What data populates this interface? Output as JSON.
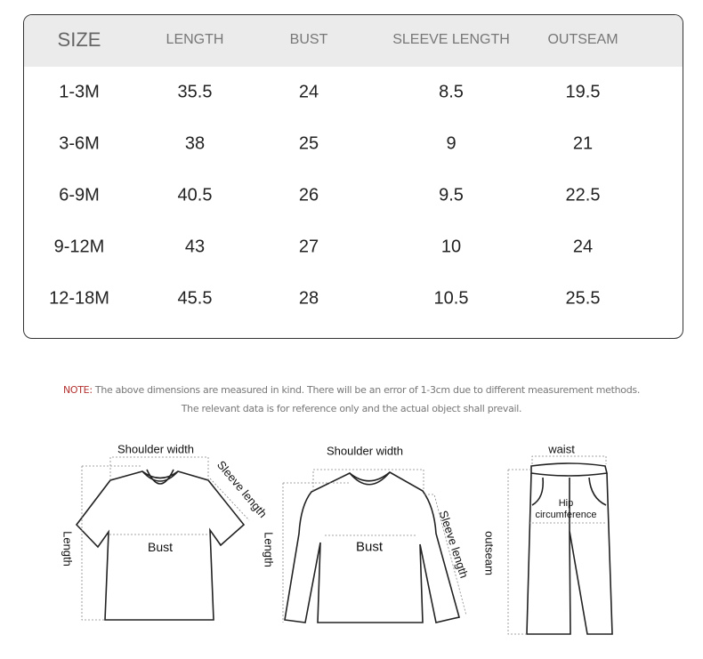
{
  "table": {
    "headers": [
      "SIZE",
      "LENGTH",
      "BUST",
      "SLEEVE LENGTH",
      "OUTSEAM"
    ],
    "rows": [
      [
        "1-3M",
        "35.5",
        "24",
        "8.5",
        "19.5"
      ],
      [
        "3-6M",
        "38",
        "25",
        "9",
        "21"
      ],
      [
        "6-9M",
        "40.5",
        "26",
        "9.5",
        "22.5"
      ],
      [
        "9-12M",
        "43",
        "27",
        "10",
        "24"
      ],
      [
        "12-18M",
        "45.5",
        "28",
        "10.5",
        "25.5"
      ]
    ]
  },
  "note": {
    "prefix": "NOTE:",
    "line1": " The above dimensions are measured in kind. There will be an error of 1-3cm due to different measurement methods.",
    "line2": "The relevant data is for reference only and the actual object shall prevail."
  },
  "diagrams": {
    "tshirt": {
      "shoulder": "Shoulder width",
      "sleeve": "Sleeve length",
      "length": "Length",
      "bust": "Bust"
    },
    "longsleeve": {
      "shoulder": "Shoulder width",
      "sleeve": "Sleeve length",
      "length": "Length",
      "bust": "Bust"
    },
    "pants": {
      "waist": "waist",
      "hip1": "Hip",
      "hip2": "circumference",
      "outseam": "outseam"
    }
  },
  "colors": {
    "header_bg": "#ebebeb",
    "note_accent": "#b3312f"
  }
}
